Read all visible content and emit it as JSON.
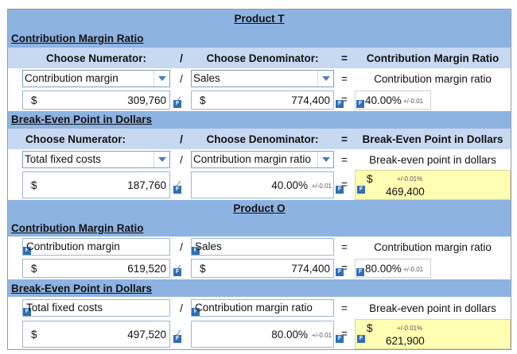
{
  "product_t": {
    "title": "Product T",
    "cm_ratio": {
      "heading": "Contribution Margin Ratio",
      "h_numerator": "Choose Numerator:",
      "h_slash": "/",
      "h_denominator": "Choose Denominator:",
      "h_equals": "=",
      "h_result": "Contribution Margin Ratio",
      "numerator_select": "Contribution margin",
      "denominator_select": "Sales",
      "result_label": "Contribution margin ratio",
      "currency1": "$",
      "numerator_value": "309,760",
      "currency2": "$",
      "denominator_value": "774,400",
      "result_value": "40.00%",
      "tolerance": "+/-0.01"
    },
    "breakeven": {
      "heading": "Break-Even Point in Dollars",
      "h_numerator": "Choose Numerator:",
      "h_slash": "/",
      "h_denominator": "Choose Denominator:",
      "h_equals": "=",
      "h_result": "Break-Even Point in Dollars",
      "numerator_select": "Total fixed costs",
      "denominator_select": "Contribution margin ratio",
      "result_label": "Break-even point in dollars",
      "currency1": "$",
      "numerator_value": "187,760",
      "denominator_value": "40.00%",
      "denominator_tolerance": "+/-0.01",
      "result_currency": "$",
      "result_tolerance": "+/-0.01%",
      "result_value": "469,400"
    }
  },
  "product_o": {
    "title": "Product O",
    "cm_ratio": {
      "heading": "Contribution Margin Ratio",
      "numerator_label": "Contribution margin",
      "slash": "/",
      "denominator_label": "Sales",
      "equals": "=",
      "result_label": "Contribution margin ratio",
      "currency1": "$",
      "numerator_value": "619,520",
      "currency2": "$",
      "denominator_value": "774,400",
      "result_value": "80.00%",
      "tolerance": "+/-0.01"
    },
    "breakeven": {
      "heading": "Break-Even Point in Dollars",
      "numerator_label": "Total fixed costs",
      "slash": "/",
      "denominator_label": "Contribution margin ratio",
      "equals": "=",
      "result_label": "Break-even point in dollars",
      "currency1": "$",
      "numerator_value": "497,520",
      "denominator_value": "80.00%",
      "denominator_tolerance": "+/-0.01",
      "result_currency": "$",
      "result_tolerance": "+/-0.01%",
      "result_value": "621,900"
    }
  },
  "icon_letter": "F"
}
